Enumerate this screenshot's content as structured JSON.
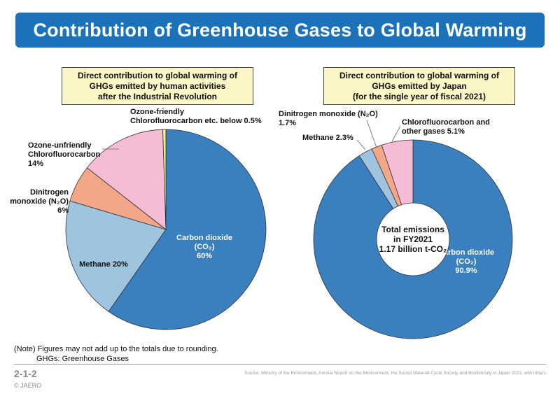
{
  "title": "Contribution of Greenhouse Gases to Global Warming",
  "chart_data": [
    {
      "type": "pie",
      "caption": [
        "Direct contribution to global warming of",
        "GHGs emitted by human activities",
        "after the Industrial Revolution"
      ],
      "slices": [
        {
          "name": "Carbon dioxide (CO₂)",
          "value": 60,
          "color": "#3a7fbe",
          "label_lines": [
            "Carbon dioxide",
            "(CO₂)",
            "60%"
          ]
        },
        {
          "name": "Methane",
          "value": 20,
          "color": "#9ec4e0",
          "label_lines": [
            "Methane 20%"
          ]
        },
        {
          "name": "Dinitrogen monoxide (N₂O)",
          "value": 6,
          "color": "#f2a888",
          "label_lines": [
            "Dinitrogen",
            "monoxide (N₂O)",
            "6%"
          ]
        },
        {
          "name": "Ozone-unfriendly Chlorofluorocarbon",
          "value": 14,
          "color": "#f5bcd6",
          "label_lines": [
            "Ozone-unfriendly",
            "Chlorofluorocarbon",
            "14%"
          ]
        },
        {
          "name": "Ozone-friendly Chlorofluorocarbon etc.",
          "value": 0.5,
          "color": "#f3ef85",
          "label_lines": [
            "Ozone-friendly",
            "Chlorofluorocarbon etc. below 0.5%"
          ]
        }
      ]
    },
    {
      "type": "pie",
      "caption": [
        "Direct contribution to global warming of",
        "GHGs emitted by Japan",
        "(for the single year of fiscal 2021)"
      ],
      "center_text": [
        "Total emissions",
        "in FY2021",
        "1.17 billion t-CO₂"
      ],
      "slices": [
        {
          "name": "Carbon dioxide (CO₂)",
          "value": 90.9,
          "color": "#3a7fbe",
          "label_lines": [
            "Carbon dioxide",
            "(CO₂)",
            "90.9%"
          ]
        },
        {
          "name": "Methane",
          "value": 2.3,
          "color": "#9ec4e0",
          "label_lines": [
            "Methane 2.3%"
          ]
        },
        {
          "name": "Dinitrogen monoxide (N₂O)",
          "value": 1.7,
          "color": "#f2a888",
          "label_lines": [
            "Dinitrogen monoxide (N₂O)",
            "1.7%"
          ]
        },
        {
          "name": "Chlorofluorocarbon and other gases",
          "value": 5.1,
          "color": "#f5bcd6",
          "label_lines": [
            "Chlorofluorocarbon and",
            "other gases 5.1%"
          ]
        }
      ]
    }
  ],
  "note": [
    "(Note) Figures may not add up to the totals due to rounding.",
    "GHGs: Greenhouse Gases"
  ],
  "figure_number": "2-1-2",
  "source": "Source: Ministry of the Environment, Annual Report on the Environment, the Sound Material-Cycle Society and Biodiversity in Japan 2023, with others",
  "copyright": "© JAERO"
}
